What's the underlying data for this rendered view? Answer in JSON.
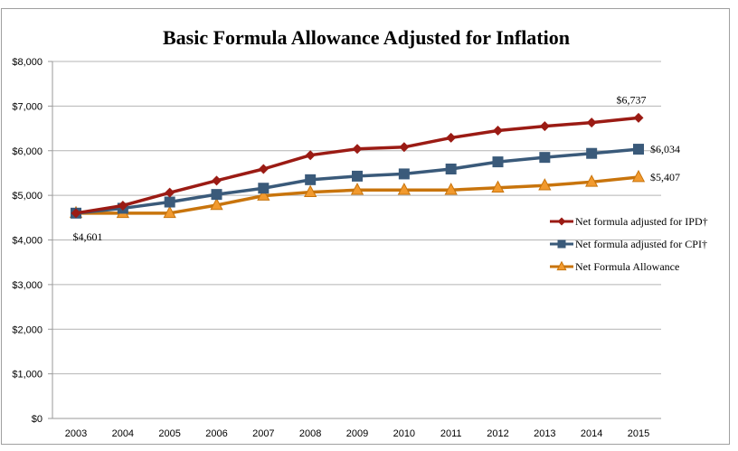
{
  "chart_data": {
    "type": "line",
    "title": "Basic Formula Allowance Adjusted for Inflation",
    "xlabel": "",
    "ylabel": "",
    "x": [
      "2003",
      "2004",
      "2005",
      "2006",
      "2007",
      "2008",
      "2009",
      "2010",
      "2011",
      "2012",
      "2013",
      "2014",
      "2015"
    ],
    "ylim": [
      0,
      8000
    ],
    "yticks": [
      0,
      1000,
      2000,
      3000,
      4000,
      5000,
      6000,
      7000,
      8000
    ],
    "ytick_labels": [
      "$0",
      "$1,000",
      "$2,000",
      "$3,000",
      "$4,000",
      "$5,000",
      "$6,000",
      "$7,000",
      "$8,000"
    ],
    "grid": true,
    "legend_position": "right",
    "series": [
      {
        "name": "Net formula adjusted for IPD†",
        "color": "#9b1b14",
        "marker": "diamond",
        "values": [
          4601,
          4770,
          5060,
          5330,
          5590,
          5900,
          6040,
          6080,
          6290,
          6450,
          6550,
          6630,
          6737
        ]
      },
      {
        "name": "Net formula adjusted for CPI†",
        "color": "#3a5a7a",
        "marker": "square",
        "values": [
          4601,
          4710,
          4850,
          5020,
          5160,
          5350,
          5430,
          5480,
          5590,
          5750,
          5850,
          5940,
          6034
        ]
      },
      {
        "name": "Net Formula Allowance",
        "color": "#c8740c",
        "marker": "triangle",
        "values": [
          4601,
          4601,
          4601,
          4780,
          4990,
          5070,
          5120,
          5120,
          5120,
          5170,
          5220,
          5300,
          5407
        ]
      }
    ],
    "annotations": [
      {
        "text": "$4,601",
        "series": 2,
        "index": 0,
        "placement": "below"
      },
      {
        "text": "$6,737",
        "series": 0,
        "index": 12,
        "placement": "above"
      },
      {
        "text": "$6,034",
        "series": 1,
        "index": 12,
        "placement": "right"
      },
      {
        "text": "$5,407",
        "series": 2,
        "index": 12,
        "placement": "right"
      }
    ]
  }
}
